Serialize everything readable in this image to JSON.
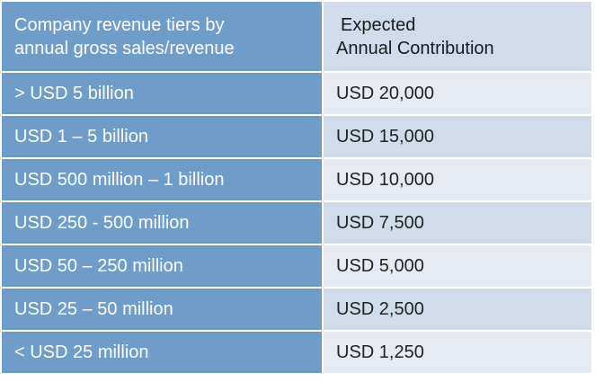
{
  "table": {
    "header": {
      "tier_line1": "Company revenue tiers by",
      "tier_line2": "annual gross sales/revenue",
      "contribution_line1": "Expected",
      "contribution_line2": "Annual Contribution"
    },
    "rows": [
      {
        "tier": "> USD 5 billion",
        "contribution": "USD 20,000"
      },
      {
        "tier": "USD 1 – 5 billion",
        "contribution": "USD 15,000"
      },
      {
        "tier": "USD 500 million – 1 billion",
        "contribution": "USD 10,000"
      },
      {
        "tier": "USD 250 - 500 million",
        "contribution": "USD 7,500"
      },
      {
        "tier": "USD 50 – 250 million",
        "contribution": "USD 5,000"
      },
      {
        "tier": "USD 25 – 50 million",
        "contribution": "USD 2,500"
      },
      {
        "tier": "< USD 25 million",
        "contribution": "USD 1,250"
      }
    ]
  }
}
